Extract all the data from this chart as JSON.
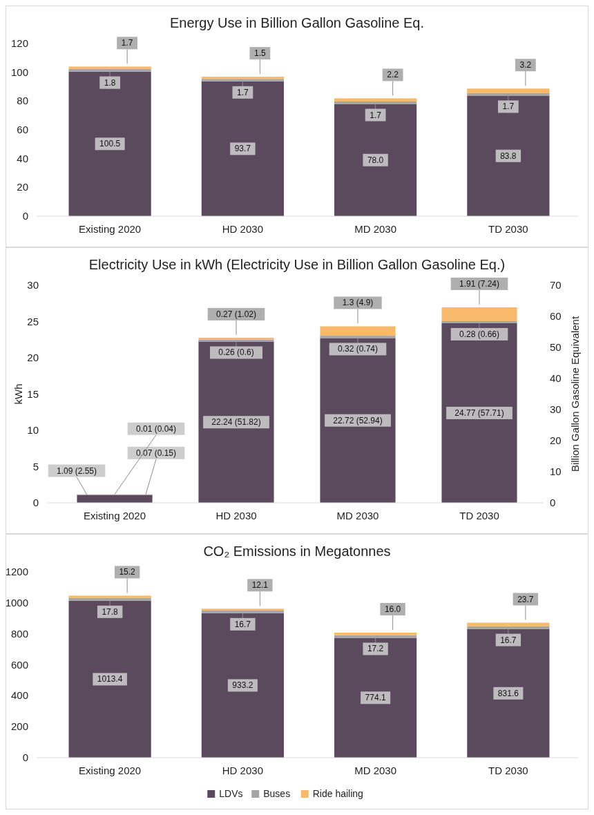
{
  "chart_data": [
    {
      "type": "bar",
      "stacked": true,
      "title": "Energy Use in Billion Gallon Gasoline Eq.",
      "categories": [
        "Existing 2020",
        "HD 2030",
        "MD 2030",
        "TD 2030"
      ],
      "ylim": [
        0,
        120
      ],
      "yticks": [
        0,
        20,
        40,
        60,
        80,
        100,
        120
      ],
      "series": [
        {
          "color": "#5b4a5e",
          "values": [
            100.5,
            93.7,
            78.0,
            83.8
          ],
          "value_labels": [
            "100.5",
            "93.7",
            "78.0",
            "83.8"
          ]
        },
        {
          "color": "#a5a5a5",
          "values": [
            1.8,
            1.7,
            1.7,
            1.7
          ],
          "value_labels": [
            "1.8",
            "1.7",
            "1.7",
            "1.7"
          ]
        },
        {
          "color": "#f8b96a",
          "values": [
            1.7,
            1.5,
            2.2,
            3.2
          ],
          "value_labels": [
            "1.7",
            "1.5",
            "2.2",
            "3.2"
          ]
        }
      ]
    },
    {
      "type": "bar",
      "stacked": true,
      "title": "Electricity Use in kWh (Electricity Use in Billion Gallon Gasoline Eq.)",
      "ylabel": "kWh",
      "y2label": "Billion Gallon Gasoline Equivalent",
      "categories": [
        "Existing 2020",
        "HD 2030",
        "MD 2030",
        "TD 2030"
      ],
      "ylim": [
        0,
        30
      ],
      "yticks": [
        0,
        5,
        10,
        15,
        20,
        25,
        30
      ],
      "y2lim": [
        0,
        70
      ],
      "y2ticks": [
        0,
        10,
        20,
        30,
        40,
        50,
        60,
        70
      ],
      "series": [
        {
          "color": "#5b4a5e",
          "values": [
            1.09,
            22.24,
            22.72,
            24.77
          ],
          "value_labels": [
            "1.09 (2.55)",
            "22.24 (51.82)",
            "22.72 (52.94)",
            "24.77 (57.71)"
          ]
        },
        {
          "color": "#a5a5a5",
          "values": [
            0.07,
            0.26,
            0.32,
            0.28
          ],
          "value_labels": [
            "0.07 (0.15)",
            "0.26 (0.6)",
            "0.32 (0.74)",
            "0.28 (0.66)"
          ]
        },
        {
          "color": "#f8b96a",
          "values": [
            0.01,
            0.27,
            1.3,
            1.91
          ],
          "value_labels": [
            "0.01 (0.04)",
            "0.27 (1.02)",
            "1.3 (4.9)",
            "1.91 (7.24)"
          ]
        }
      ]
    },
    {
      "type": "bar",
      "stacked": true,
      "title": "CO₂ Emissions in Megatonnes",
      "categories": [
        "Existing 2020",
        "HD 2030",
        "MD 2030",
        "TD 2030"
      ],
      "ylim": [
        0,
        1200
      ],
      "yticks": [
        0,
        200,
        400,
        600,
        800,
        1000,
        1200
      ],
      "legend": "bottom",
      "series": [
        {
          "name": "LDVs",
          "color": "#5b4a5e",
          "values": [
            1013.4,
            933.2,
            774.1,
            831.6
          ],
          "value_labels": [
            "1013.4",
            "933.2",
            "774.1",
            "831.6"
          ]
        },
        {
          "name": "Buses",
          "color": "#a5a5a5",
          "values": [
            17.8,
            16.7,
            17.2,
            16.7
          ],
          "value_labels": [
            "17.8",
            "16.7",
            "17.2",
            "16.7"
          ]
        },
        {
          "name": "Ride hailing",
          "color": "#f8b96a",
          "values": [
            15.2,
            12.1,
            16.0,
            23.7
          ],
          "value_labels": [
            "15.2",
            "12.1",
            "16.0",
            "23.7"
          ]
        }
      ]
    }
  ]
}
